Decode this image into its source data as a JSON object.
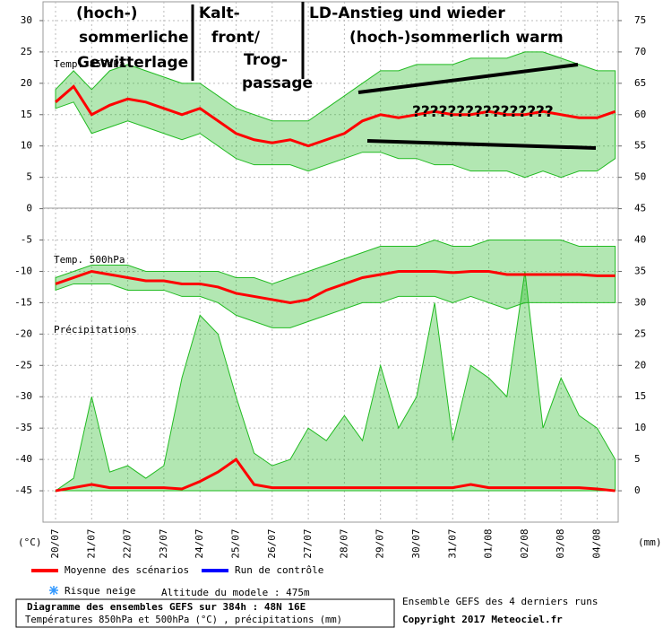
{
  "chart_data": {
    "type": "line",
    "x": [
      "20/07",
      null,
      "21/07",
      null,
      "22/07",
      null,
      "23/07",
      null,
      "24/07",
      null,
      "25/07",
      null,
      "26/07",
      null,
      "27/07",
      null,
      "28/07",
      null,
      "29/07",
      null,
      "30/07",
      null,
      "31/07",
      null,
      "01/08",
      null,
      "02/08",
      null,
      "03/08",
      null,
      "04/08",
      null
    ],
    "ylim": [
      33,
      -50
    ],
    "yticks": [
      30,
      25,
      20,
      15,
      10,
      5,
      0,
      -5,
      -10,
      -15,
      -20,
      -25,
      -30,
      -35,
      -40,
      -45
    ],
    "y2lim": [
      78,
      -5
    ],
    "y2ticks": [
      75,
      70,
      65,
      60,
      55,
      50,
      45,
      40,
      35,
      30,
      25,
      20,
      15,
      10,
      5,
      0
    ],
    "ylabel": "(°C)",
    "y2label": "(mm)",
    "grid": true,
    "series": [
      {
        "name": "Moyenne des scénarios",
        "color": "#ff0000",
        "values": [
          17,
          19.5,
          15,
          16.5,
          17.5,
          17,
          16,
          15,
          16,
          14,
          12,
          11,
          10.5,
          11,
          10,
          11,
          12,
          14,
          15,
          14.5,
          15,
          15.5,
          15,
          15,
          15.5,
          15,
          15,
          15.5,
          15,
          14.5,
          14.5,
          15.5
        ]
      },
      {
        "color": "#ff0000",
        "values": [
          -12,
          -11,
          -10,
          -10.5,
          -11,
          -11.5,
          -11.5,
          -12,
          -12,
          -12.5,
          -13.5,
          -14,
          -14.5,
          -15,
          -14.5,
          -13,
          -12,
          -11,
          -10.5,
          -10,
          -10,
          -10,
          -10.2,
          -10,
          -10,
          -10.5,
          -10.5,
          -10.5,
          -10.5,
          -10.5,
          -10.7,
          -10.7
        ]
      },
      {
        "color": "#ff0000",
        "axis": "y2",
        "values": [
          0,
          0.5,
          1,
          0.5,
          0.5,
          0.5,
          0.5,
          0.3,
          1.5,
          3,
          5,
          1,
          0.5,
          0.5,
          0.5,
          0.5,
          0.5,
          0.5,
          0.5,
          0.5,
          0.5,
          0.5,
          0.5,
          1,
          0.5,
          0.5,
          0.5,
          0.5,
          0.5,
          0.5,
          0.3,
          0
        ]
      }
    ],
    "ensemble": [
      {
        "color": "#22bb22",
        "high": [
          19,
          22,
          19,
          22,
          23,
          22,
          21,
          20,
          20,
          18,
          16,
          15,
          14,
          14,
          14,
          16,
          18,
          20,
          22,
          22,
          23,
          23,
          23,
          24,
          24,
          24,
          25,
          25,
          24,
          23,
          22,
          22
        ],
        "low": [
          16,
          17,
          12,
          13,
          14,
          13,
          12,
          11,
          12,
          10,
          8,
          7,
          7,
          7,
          6,
          7,
          8,
          9,
          9,
          8,
          8,
          7,
          7,
          6,
          6,
          6,
          5,
          6,
          5,
          6,
          6,
          8
        ]
      },
      {
        "color": "#22bb22",
        "high": [
          -11,
          -10,
          -9,
          -9,
          -9,
          -10,
          -10,
          -10,
          -10,
          -10,
          -11,
          -11,
          -12,
          -11,
          -10,
          -9,
          -8,
          -7,
          -6,
          -6,
          -6,
          -5,
          -6,
          -6,
          -5,
          -5,
          -5,
          -5,
          -5,
          -6,
          -6,
          -6
        ],
        "low": [
          -13,
          -12,
          -12,
          -12,
          -13,
          -13,
          -13,
          -14,
          -14,
          -15,
          -17,
          -18,
          -19,
          -19,
          -18,
          -17,
          -16,
          -15,
          -15,
          -14,
          -14,
          -14,
          -15,
          -14,
          -15,
          -16,
          -15,
          -15,
          -15,
          -15,
          -15,
          -15
        ]
      },
      {
        "color": "#22bb22",
        "axis": "y2",
        "high": [
          0,
          2,
          15,
          3,
          4,
          2,
          4,
          18,
          28,
          25,
          15,
          6,
          4,
          5,
          10,
          8,
          12,
          8,
          20,
          10,
          15,
          30,
          8,
          20,
          18,
          15,
          35,
          10,
          18,
          12,
          10,
          5
        ]
      }
    ],
    "labels": [
      "Temp. 850hPa",
      "Temp. 500hPa",
      "Précipitations"
    ],
    "annotations": [
      "(hoch-)",
      "sommerliche",
      "Gewitterlage",
      "Kalt-",
      "front/",
      "Trog-",
      "passage",
      "LD-Anstieg und wieder",
      "(hoch-)sommerlich warm",
      "????????????????"
    ],
    "legend": [
      {
        "label": "Moyenne des scénarios",
        "color": "#ff0000"
      },
      {
        "label": "Run de contrôle",
        "color": "#0000ff"
      }
    ],
    "snow": "Risque neige",
    "altitude": "Altitude du modele : 475m",
    "footer": {
      "title": "Diagramme des ensembles GEFS sur 384h : 48N 16E",
      "subtitle": "Températures 850hPa et 500hPa (°C) , précipitations (mm)",
      "runs": "Ensemble GEFS des 4 derniers runs",
      "copyright": "Copyright 2017 Meteociel.fr"
    }
  }
}
